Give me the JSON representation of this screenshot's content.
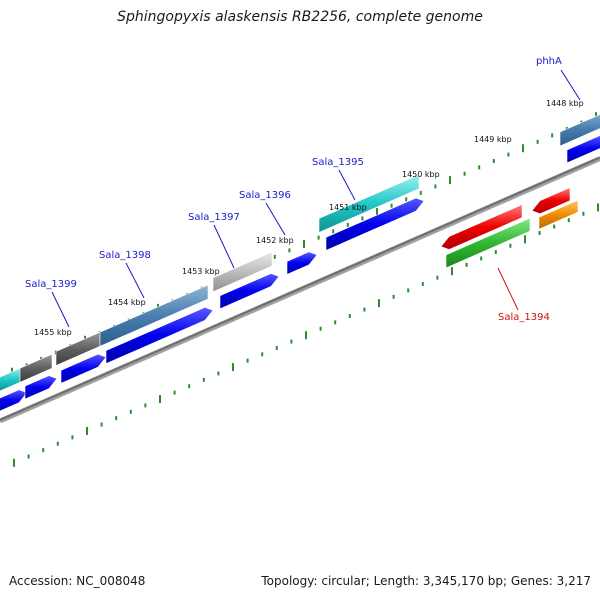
{
  "title": "Sphingopyxis alaskensis RB2256, complete genome",
  "footer": {
    "accession": "Accession: NC_008048",
    "summary": "Topology: circular; Length: 3,345,170 bp; Genes: 3,217"
  },
  "colors": {
    "backbone": "#808080",
    "tick": "#2e8b2e",
    "label_blue": "#1a1ac8",
    "label_red": "#d01010"
  },
  "scale_labels": [
    "1448 kbp",
    "1449 kbp",
    "1450 kbp",
    "1451 kbp",
    "1452 kbp",
    "1453 kbp",
    "1454 kbp",
    "1455 kbp"
  ],
  "gene_labels": [
    "phhA",
    "Sala_1395",
    "Sala_1396",
    "Sala_1397",
    "Sala_1398",
    "Sala_1399",
    "Sala_1394"
  ]
}
